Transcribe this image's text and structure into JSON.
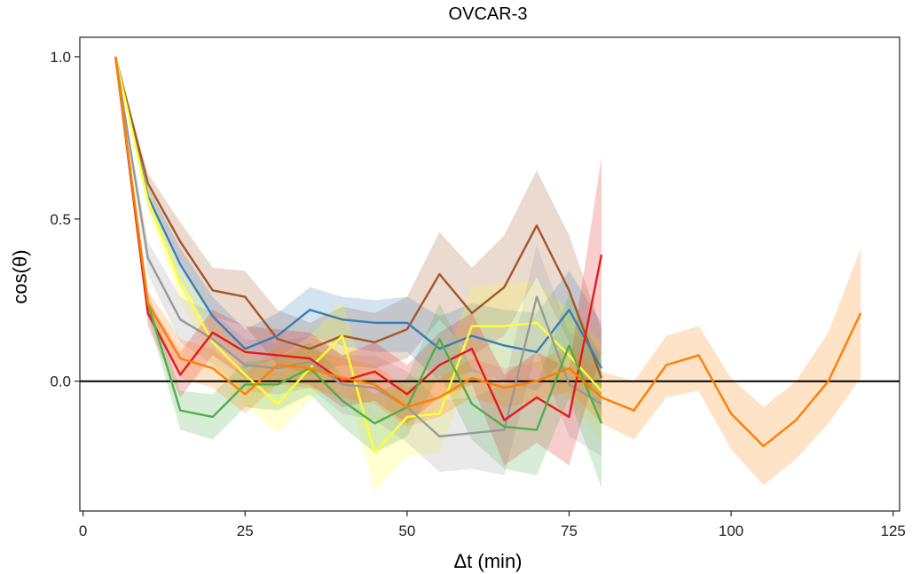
{
  "chart_data": {
    "type": "line",
    "title": "OVCAR-3",
    "xlabel": "Δt (min)",
    "ylabel": "cos(θ)",
    "xlim": [
      -0.5,
      126
    ],
    "ylim": [
      -0.4,
      1.06
    ],
    "xticks": [
      0,
      25,
      50,
      75,
      100,
      125
    ],
    "xtick_labels": [
      "0",
      "25",
      "50",
      "75",
      "100",
      "125"
    ],
    "yticks": [
      0.0,
      0.5,
      1.0
    ],
    "ytick_labels": [
      "0.0",
      "0.5",
      "1.0"
    ],
    "reference_line": 0.0,
    "grid": false,
    "legend": "none",
    "series": [
      {
        "color": "#A65628",
        "x": [
          5,
          10,
          15,
          20,
          25,
          30,
          35,
          40,
          45,
          50,
          55,
          60,
          65,
          70,
          75,
          80
        ],
        "y": [
          1.0,
          0.61,
          0.43,
          0.28,
          0.26,
          0.13,
          0.1,
          0.14,
          0.12,
          0.16,
          0.33,
          0.21,
          0.29,
          0.48,
          0.28,
          0.01
        ],
        "lower": [
          1.0,
          0.58,
          0.37,
          0.2,
          0.17,
          0.05,
          0.02,
          0.05,
          0.04,
          0.07,
          0.19,
          0.08,
          0.14,
          0.32,
          0.12,
          -0.12
        ],
        "upper": [
          1.0,
          0.64,
          0.49,
          0.35,
          0.34,
          0.22,
          0.18,
          0.23,
          0.21,
          0.26,
          0.46,
          0.35,
          0.45,
          0.65,
          0.45,
          0.16
        ]
      },
      {
        "color": "#377EB8",
        "x": [
          5,
          10,
          15,
          20,
          25,
          30,
          35,
          40,
          45,
          50,
          55,
          60,
          65,
          70,
          75,
          80
        ],
        "y": [
          1.0,
          0.57,
          0.36,
          0.2,
          0.1,
          0.14,
          0.22,
          0.19,
          0.18,
          0.18,
          0.1,
          0.14,
          0.11,
          0.09,
          0.22,
          0.04
        ],
        "lower": [
          1.0,
          0.54,
          0.31,
          0.14,
          0.04,
          0.07,
          0.14,
          0.11,
          0.09,
          0.09,
          0.0,
          0.03,
          0.0,
          -0.03,
          0.09,
          -0.1
        ],
        "upper": [
          1.0,
          0.6,
          0.41,
          0.26,
          0.16,
          0.21,
          0.29,
          0.26,
          0.25,
          0.26,
          0.2,
          0.24,
          0.22,
          0.21,
          0.34,
          0.18
        ]
      },
      {
        "color": "#FFFF33",
        "x": [
          5,
          10,
          15,
          20,
          25,
          30,
          35,
          40,
          45,
          50,
          55,
          60,
          65,
          70,
          75,
          80
        ],
        "y": [
          1.0,
          0.56,
          0.3,
          0.12,
          0.02,
          -0.07,
          0.04,
          0.14,
          -0.22,
          -0.11,
          -0.1,
          0.17,
          0.17,
          0.18,
          0.08,
          -0.03
        ],
        "lower": [
          1.0,
          0.52,
          0.25,
          0.05,
          -0.07,
          -0.16,
          -0.06,
          0.03,
          -0.34,
          -0.23,
          -0.22,
          0.05,
          0.04,
          0.05,
          -0.06,
          -0.18
        ],
        "upper": [
          1.0,
          0.6,
          0.35,
          0.19,
          0.11,
          0.02,
          0.14,
          0.25,
          -0.1,
          0.01,
          0.02,
          0.29,
          0.3,
          0.31,
          0.22,
          0.12
        ]
      },
      {
        "color": "#999999",
        "x": [
          5,
          10,
          15,
          20,
          25,
          30,
          35,
          40,
          45,
          50,
          55,
          60,
          65,
          70,
          75,
          80
        ],
        "y": [
          1.0,
          0.38,
          0.19,
          0.13,
          0.05,
          0.04,
          0.06,
          -0.01,
          -0.02,
          -0.08,
          -0.17,
          -0.16,
          -0.15,
          0.26,
          -0.01,
          -0.07
        ],
        "lower": [
          1.0,
          0.33,
          0.12,
          0.05,
          -0.03,
          -0.04,
          -0.02,
          -0.1,
          -0.12,
          -0.19,
          -0.28,
          -0.27,
          -0.29,
          0.1,
          -0.17,
          -0.23
        ],
        "upper": [
          1.0,
          0.43,
          0.26,
          0.21,
          0.13,
          0.12,
          0.14,
          0.08,
          0.08,
          0.03,
          -0.06,
          -0.05,
          -0.01,
          0.42,
          0.15,
          0.09
        ]
      },
      {
        "color": "#E41A1C",
        "x": [
          5,
          10,
          15,
          20,
          25,
          30,
          35,
          40,
          45,
          50,
          55,
          60,
          65,
          70,
          75,
          80
        ],
        "y": [
          1.0,
          0.21,
          0.02,
          0.15,
          0.09,
          0.08,
          0.07,
          0.0,
          0.03,
          -0.04,
          0.05,
          0.1,
          -0.12,
          -0.05,
          -0.11,
          0.39
        ],
        "lower": [
          1.0,
          0.17,
          -0.05,
          0.08,
          0.01,
          0.0,
          -0.01,
          -0.08,
          -0.06,
          -0.13,
          -0.05,
          -0.01,
          -0.26,
          -0.19,
          -0.26,
          0.09
        ],
        "upper": [
          1.0,
          0.25,
          0.09,
          0.22,
          0.17,
          0.16,
          0.15,
          0.08,
          0.12,
          0.05,
          0.15,
          0.21,
          0.02,
          0.09,
          0.04,
          0.69
        ]
      },
      {
        "color": "#4DAF4A",
        "x": [
          5,
          10,
          15,
          20,
          25,
          30,
          35,
          40,
          45,
          50,
          55,
          60,
          65,
          70,
          75,
          80
        ],
        "y": [
          1.0,
          0.24,
          -0.09,
          -0.11,
          -0.01,
          -0.01,
          0.04,
          -0.06,
          -0.13,
          -0.08,
          0.13,
          -0.07,
          -0.14,
          -0.15,
          0.11,
          -0.13
        ],
        "lower": [
          1.0,
          0.2,
          -0.15,
          -0.18,
          -0.08,
          -0.09,
          -0.04,
          -0.14,
          -0.22,
          -0.17,
          0.02,
          -0.18,
          -0.27,
          -0.29,
          -0.05,
          -0.33
        ],
        "upper": [
          1.0,
          0.28,
          -0.03,
          -0.04,
          0.06,
          0.07,
          0.12,
          0.02,
          -0.04,
          0.01,
          0.24,
          0.04,
          -0.01,
          -0.01,
          0.27,
          0.07
        ]
      },
      {
        "color": "#FF7F00",
        "x": [
          5,
          10,
          15,
          20,
          25,
          30,
          35,
          40,
          45,
          50,
          55,
          60,
          65,
          70,
          75,
          80,
          85,
          90,
          95,
          100,
          105,
          110,
          115,
          120
        ],
        "y": [
          1.0,
          0.24,
          0.07,
          0.04,
          -0.04,
          0.05,
          0.04,
          0.01,
          -0.01,
          -0.08,
          -0.05,
          0.01,
          -0.02,
          0.0,
          0.04,
          -0.05,
          -0.09,
          0.05,
          0.08,
          -0.1,
          -0.2,
          -0.12,
          0.0,
          0.21
        ],
        "lower": [
          1.0,
          0.2,
          0.01,
          -0.02,
          -0.1,
          -0.01,
          -0.02,
          -0.05,
          -0.07,
          -0.14,
          -0.11,
          -0.05,
          -0.08,
          -0.06,
          -0.03,
          -0.13,
          -0.18,
          -0.05,
          -0.03,
          -0.21,
          -0.32,
          -0.24,
          -0.13,
          0.01
        ],
        "upper": [
          1.0,
          0.28,
          0.13,
          0.1,
          0.02,
          0.11,
          0.1,
          0.07,
          0.05,
          -0.02,
          0.01,
          0.07,
          0.04,
          0.06,
          0.11,
          0.03,
          0.0,
          0.14,
          0.17,
          0.01,
          -0.08,
          0.0,
          0.15,
          0.41
        ]
      }
    ]
  }
}
